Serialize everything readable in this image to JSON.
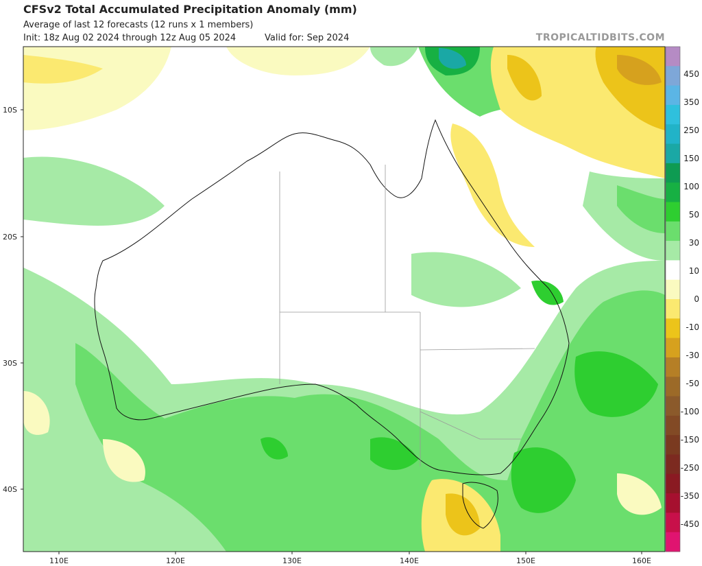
{
  "header": {
    "title": "CFSv2 Total Accumulated Precipitation Anomaly (mm)",
    "subtitle": "Average of last 12 forecasts (12 runs x 1 members)",
    "init": "Init: 18z Aug 02 2024 through 12z Aug 05 2024",
    "valid": "Valid for: Sep 2024",
    "brand": "TROPICALTIDBITS.COM"
  },
  "axes": {
    "lat_labels": [
      "10S",
      "20S",
      "30S",
      "40S"
    ],
    "lon_labels": [
      "110E",
      "120E",
      "130E",
      "140E",
      "150E",
      "160E"
    ]
  },
  "colorbar": {
    "labels": [
      "450",
      "350",
      "250",
      "150",
      "100",
      "50",
      "30",
      "10",
      "0",
      "-10",
      "-30",
      "-50",
      "-100",
      "-150",
      "-250",
      "-350",
      "-450"
    ],
    "colors": [
      "#b58bc4",
      "#7ea7d8",
      "#5bb5e5",
      "#2fc0dd",
      "#21b3c8",
      "#1aa8a5",
      "#0e9b52",
      "#17b043",
      "#2ece30",
      "#6bde6d",
      "#a6eaa6",
      "#ffffff",
      "#fafac0",
      "#fbe970",
      "#ecc41a",
      "#d6a11e",
      "#b57f26",
      "#9c6a28",
      "#8b5a2b",
      "#824a25",
      "#7a3a20",
      "#7c2a20",
      "#8a1a22",
      "#a6102f",
      "#c8104a",
      "#e01470"
    ],
    "style": "vertical, right side"
  }
}
